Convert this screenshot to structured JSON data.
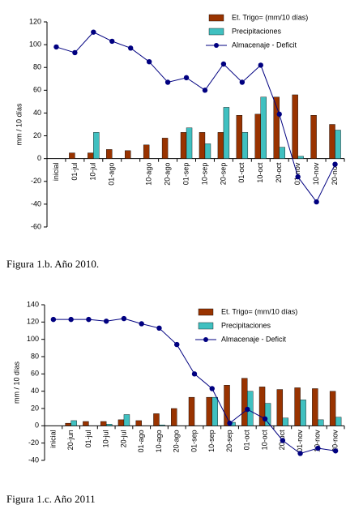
{
  "chart_data": [
    {
      "type": "bar",
      "caption": "Figura 1.b. Año 2010.",
      "y_label": "mm / 10 días",
      "categories": [
        "inicial",
        "01-jul",
        "10-jul",
        "01-ago",
        null,
        "10-ago",
        "20-ago",
        "01-sep",
        "10-sep",
        "20-sep",
        "01-oct",
        "10-oct",
        "20-oct",
        "01-nov",
        "10-nov",
        "20-nov"
      ],
      "series": [
        {
          "name": "Et. Trigo= (mm/10 días)",
          "type": "bar",
          "color": "#993300",
          "values": [
            null,
            5,
            5,
            8,
            7,
            12,
            18,
            23,
            23,
            23,
            38,
            39,
            54,
            56,
            38,
            30
          ]
        },
        {
          "name": "Precipitaciones",
          "type": "bar",
          "color": "#40c0c0",
          "values": [
            null,
            0,
            23,
            0,
            0,
            0,
            0,
            27,
            13,
            45,
            23,
            54,
            10,
            2,
            0,
            25
          ]
        },
        {
          "name": "Almacenaje - Deficit",
          "type": "line",
          "color": "#000080",
          "values": [
            98,
            93,
            111,
            103,
            97,
            85,
            67,
            71,
            60,
            83,
            67,
            82,
            39,
            -16,
            -38,
            -5
          ]
        }
      ],
      "ylim": [
        -60,
        120
      ],
      "yticks": [
        -60,
        -40,
        -20,
        0,
        20,
        40,
        60,
        80,
        100,
        120
      ],
      "legend": "top-right"
    },
    {
      "type": "bar",
      "caption": "Figura 1.c. Año 2011",
      "y_label": "mm / 10 días",
      "categories": [
        "inicial",
        "20-jun",
        "01-jul",
        "10-jul",
        "20-jul",
        "01-ago",
        "10-ago",
        "20-ago",
        "01-sep",
        "10-sep",
        "20-sep",
        "01-oct",
        "10-oct",
        "20-oct",
        "01-nov",
        "10-nov",
        "20-nov"
      ],
      "series": [
        {
          "name": "Et. Trigo= (mm/10 días)",
          "type": "bar",
          "color": "#993300",
          "values": [
            null,
            3,
            5,
            5,
            7,
            6,
            14,
            20,
            33,
            33,
            47,
            55,
            45,
            42,
            44,
            43,
            40
          ]
        },
        {
          "name": "Precipitaciones",
          "type": "bar",
          "color": "#40c0c0",
          "values": [
            null,
            6,
            0,
            2,
            13,
            0,
            1,
            0,
            0,
            33,
            4,
            40,
            26,
            9,
            30,
            7,
            10
          ]
        },
        {
          "name": "Almacenaje - Deficit",
          "type": "line",
          "color": "#000080",
          "values": [
            123,
            123,
            123,
            121,
            124,
            118,
            113,
            94,
            60,
            43,
            3,
            19,
            8,
            -17,
            -32,
            -26,
            -29
          ]
        }
      ],
      "ylim": [
        -40,
        140
      ],
      "yticks": [
        -40,
        -20,
        0,
        20,
        40,
        60,
        80,
        100,
        120,
        140
      ],
      "legend": "top-right"
    }
  ]
}
